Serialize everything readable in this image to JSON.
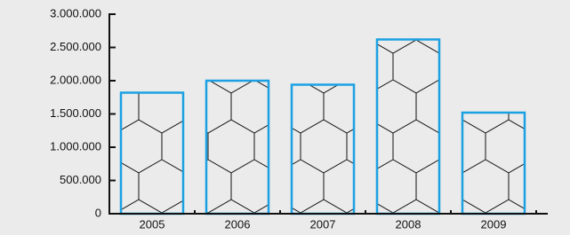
{
  "chart_data": {
    "type": "bar",
    "categories": [
      "2005",
      "2006",
      "2007",
      "2008",
      "2009"
    ],
    "values": [
      1820000,
      2000000,
      1940000,
      2620000,
      1520000
    ],
    "color": "#1ba1e2",
    "ylim": [
      0,
      3000000
    ],
    "yticks": [
      0,
      {
        "value": 500000,
        "label": "500.000"
      },
      {
        "value": 1000000,
        "label": "1.000.000"
      },
      {
        "value": 1500000,
        "label": "1.500.000"
      },
      {
        "value": 2000000,
        "label": "2.000.000"
      },
      {
        "value": 2500000,
        "label": "2.500.000"
      },
      {
        "value": 3000000,
        "label": "3.000.000"
      }
    ]
  }
}
